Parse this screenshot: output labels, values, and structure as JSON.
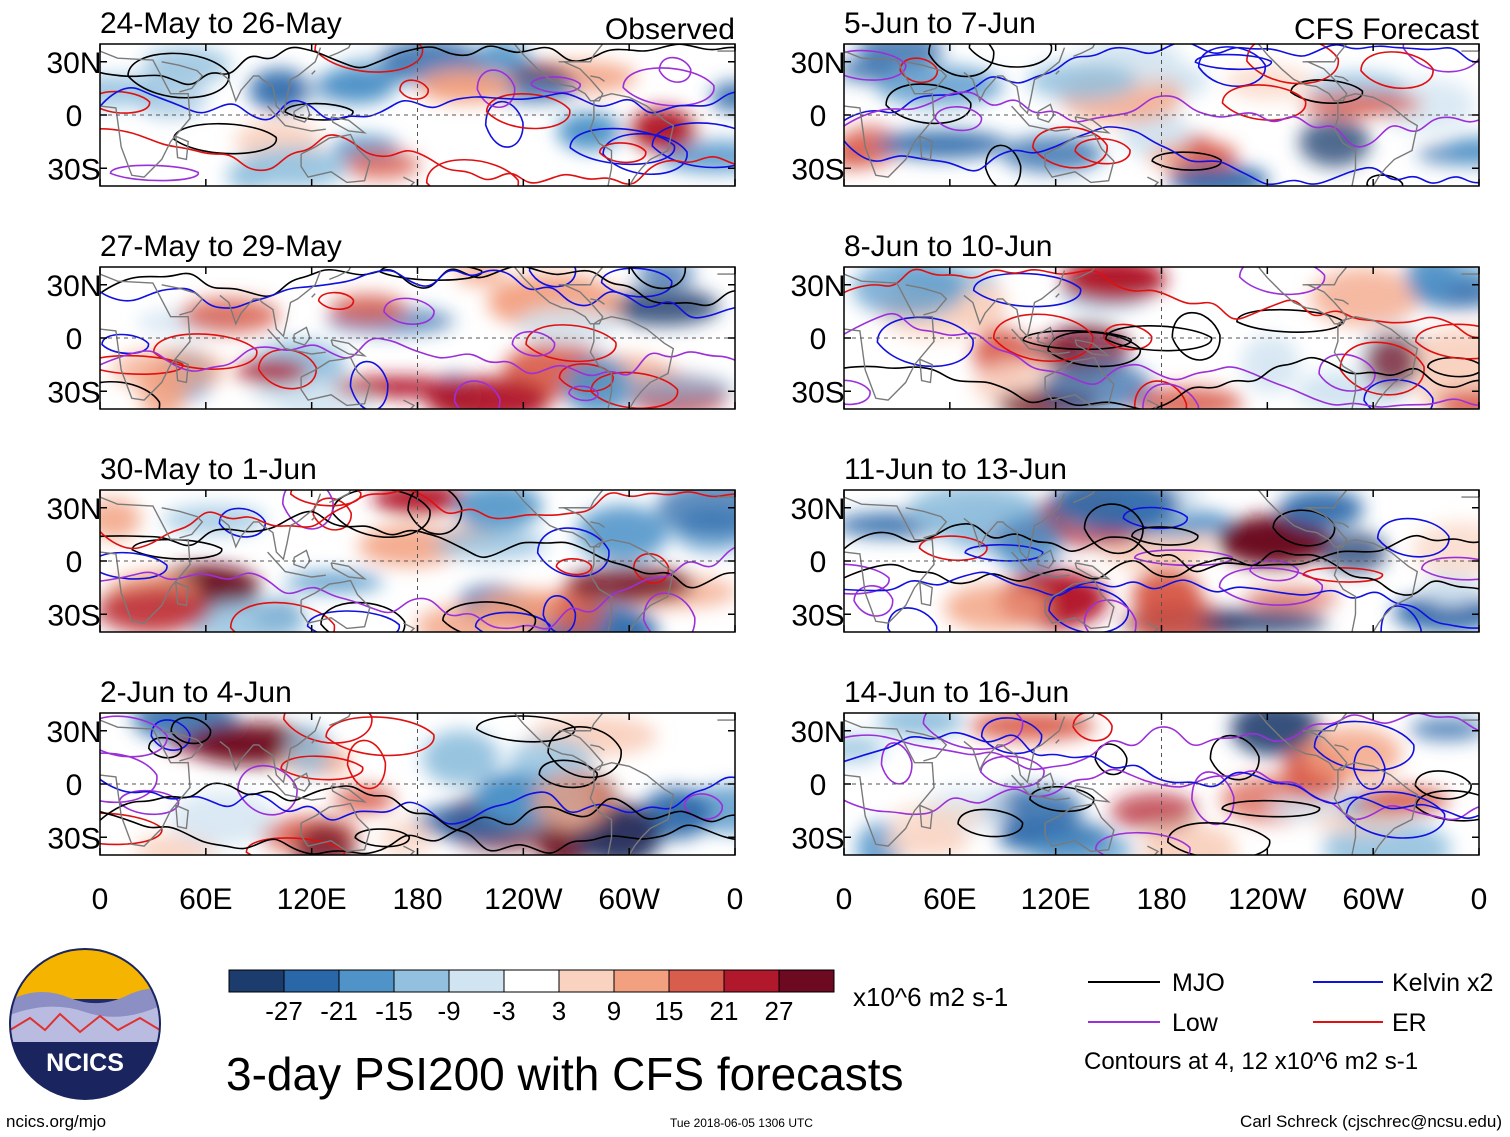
{
  "chart_data": {
    "type": "heatmap",
    "title": "3-day PSI200 with CFS forecasts",
    "units": "x10^6 m2 s-1",
    "contour_note": "Contours at 4, 12 x10^6 m2 s-1",
    "x_ticks": [
      "0",
      "60E",
      "120E",
      "180",
      "120W",
      "60W",
      "0"
    ],
    "y_ticks": [
      "30N",
      "0",
      "30S"
    ],
    "x_range": [
      0,
      360
    ],
    "y_range": [
      -40,
      40
    ],
    "observed_label": "Observed",
    "forecast_label": "CFS Forecast",
    "observed_panels": [
      {
        "period": "24-May to 26-May"
      },
      {
        "period": "27-May to 29-May"
      },
      {
        "period": "30-May to 1-Jun"
      },
      {
        "period": "2-Jun to 4-Jun"
      }
    ],
    "forecast_panels": [
      {
        "period": "5-Jun to 7-Jun"
      },
      {
        "period": "8-Jun to 10-Jun"
      },
      {
        "period": "11-Jun to 13-Jun"
      },
      {
        "period": "14-Jun to 16-Jun"
      }
    ],
    "colorbar": {
      "colors": [
        "#1d3c6e",
        "#2a67a8",
        "#4f93c8",
        "#92c0de",
        "#d1e4f1",
        "#ffffff",
        "#f9d2c0",
        "#f2a07f",
        "#d95d4c",
        "#b2182b",
        "#6d0920"
      ],
      "ticks": [
        "-27",
        "-21",
        "-15",
        "-9",
        "-3",
        "3",
        "9",
        "15",
        "21",
        "27"
      ]
    },
    "legend": [
      {
        "label": "MJO",
        "color": "#000000"
      },
      {
        "label": "Kelvin x2",
        "color": "#1010e0"
      },
      {
        "label": "Low",
        "color": "#9b30d9"
      },
      {
        "label": "ER",
        "color": "#e01010"
      }
    ]
  },
  "footer": {
    "logo_text": "NCICS",
    "url": "ncics.org/mjo",
    "timestamp": "Tue 2018-06-05 1306 UTC",
    "author": "Carl Schreck (cjschrec@ncsu.edu)"
  }
}
